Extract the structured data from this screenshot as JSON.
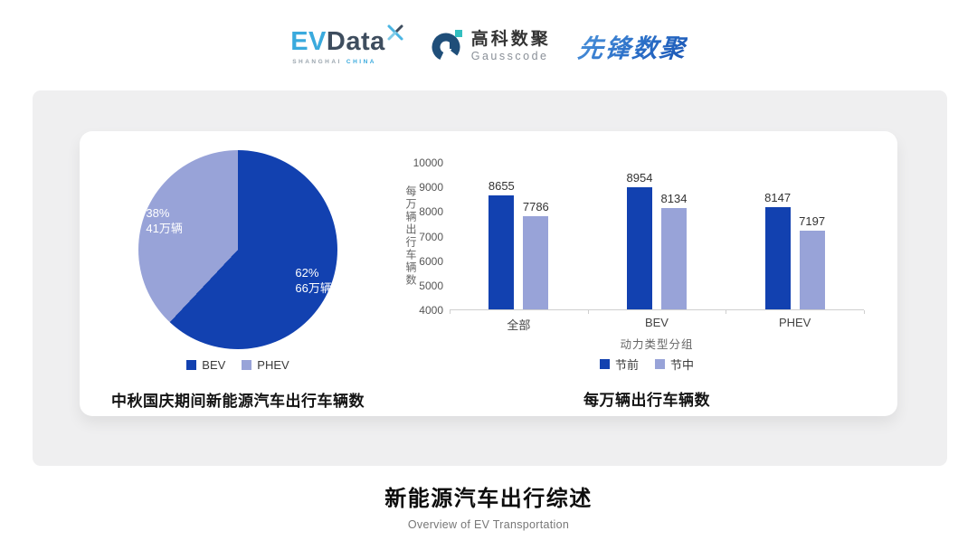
{
  "header": {
    "evdata": {
      "part1": "EV",
      "part2": "Data",
      "sub1": "SHANGHAI",
      "sub2": "CHINA"
    },
    "gausscode": {
      "name_cn": "高科数聚",
      "name_en": "Gausscode"
    },
    "pioneer": {
      "name": "先锋数聚"
    }
  },
  "footer": {
    "title": "新能源汽车出行综述",
    "subtitle": "Overview of EV Transportation"
  },
  "colors": {
    "series_dark_blue": "#1241b0",
    "series_light_blue": "#98a3d8",
    "panel_gray": "#efeff0",
    "evdata_blue": "#3aaadd",
    "evdata_dark": "#3e4d5e",
    "gausscode_navy": "#1f4e79",
    "gausscode_teal": "#33bfc0"
  },
  "chart_data": [
    {
      "type": "pie",
      "title": "中秋国庆期间新能源汽车出行车辆数",
      "slices": [
        {
          "label": "BEV",
          "percent": 62,
          "percent_label": "62%",
          "value": 66,
          "value_label": "66万辆",
          "color": "#1241b0"
        },
        {
          "label": "PHEV",
          "percent": 38,
          "percent_label": "38%",
          "value": 41,
          "value_label": "41万辆",
          "color": "#98a3d8"
        }
      ],
      "legend": [
        "BEV",
        "PHEV"
      ],
      "legend_position": "bottom",
      "start_angle": "top",
      "unit": "万辆"
    },
    {
      "type": "bar",
      "title": "每万辆出行车辆数",
      "categories": [
        "全部",
        "BEV",
        "PHEV"
      ],
      "series": [
        {
          "name": "节前",
          "color": "#1241b0",
          "values": [
            8655,
            8954,
            8147
          ]
        },
        {
          "name": "节中",
          "color": "#98a3d8",
          "values": [
            7786,
            8134,
            7197
          ]
        }
      ],
      "xlabel": "动力类型分组",
      "ylabel": "每万辆出行车辆数",
      "ylim": [
        4000,
        10000
      ],
      "ytick_step": 1000,
      "grid": false,
      "legend_position": "bottom",
      "value_labels": true
    }
  ]
}
